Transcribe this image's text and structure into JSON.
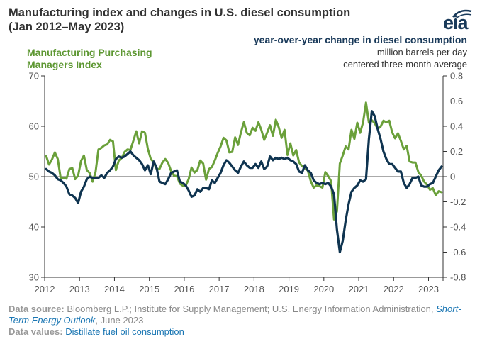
{
  "header": {
    "title_line1": "Manufacturing index and changes in U.S. diesel consumption",
    "title_line2": "(Jan 2012–May 2023)",
    "logo_text": "eia"
  },
  "left_axis_title": {
    "line1": "Manufacturing Purchasing",
    "line2": "Managers Index"
  },
  "right_axis_title": {
    "line1": "year-over-year change in diesel consumption",
    "line2": "million barrels per day",
    "line3": "centered three-month average"
  },
  "footer": {
    "source_label": "Data source:",
    "source_text": "Bloomberg L.P.; Institute for Supply Management; U.S. Energy Information Administration,",
    "source_link": "Short-Term Energy Outlook",
    "source_date": ", June 2023",
    "values_label": "Data values:",
    "values_link": "Distillate fuel oil consumption"
  },
  "colors": {
    "pmi": "#6aa03a",
    "diesel": "#0f3450",
    "axis": "#333333",
    "zero_line": "#555555"
  },
  "chart_data": {
    "type": "line",
    "x_start": "2012-01",
    "x_end": "2023-05",
    "x_tick_labels": [
      "2012",
      "2013",
      "2014",
      "2015",
      "2016",
      "2017",
      "2018",
      "2019",
      "2020",
      "2021",
      "2022",
      "2023"
    ],
    "left_axis": {
      "ylim": [
        30,
        70
      ],
      "ticks": [
        30,
        40,
        50,
        60,
        70
      ]
    },
    "right_axis": {
      "ylim": [
        -0.8,
        0.8
      ],
      "ticks": [
        "-0.8",
        "-0.6",
        "-0.4",
        "-0.2",
        "0",
        "0.2",
        "0.4",
        "0.6",
        "0.8"
      ]
    },
    "grid": false,
    "series": [
      {
        "name": "Manufacturing Purchasing Managers Index",
        "axis": "left",
        "values": [
          54.1,
          52.4,
          53.4,
          54.8,
          53.5,
          49.7,
          49.8,
          49.6,
          51.5,
          51.7,
          49.5,
          50.2,
          53.1,
          54.2,
          51.3,
          50.7,
          49.0,
          50.9,
          55.4,
          55.7,
          56.2,
          56.4,
          57.3,
          57.0,
          51.3,
          53.2,
          53.7,
          54.9,
          55.4,
          55.3,
          57.1,
          59.0,
          56.6,
          59.0,
          58.7,
          55.5,
          53.5,
          52.9,
          51.5,
          51.5,
          52.8,
          53.5,
          52.7,
          51.1,
          50.2,
          50.1,
          48.6,
          48.2,
          48.2,
          49.5,
          51.8,
          50.8,
          51.3,
          53.2,
          52.6,
          49.4,
          51.5,
          51.9,
          53.2,
          54.7,
          56.0,
          57.7,
          57.2,
          54.8,
          54.9,
          57.8,
          56.3,
          58.8,
          60.8,
          58.7,
          58.2,
          59.7,
          59.1,
          60.8,
          59.3,
          57.3,
          58.7,
          60.2,
          58.1,
          61.3,
          59.8,
          57.7,
          59.3,
          54.3,
          56.6,
          54.2,
          55.3,
          52.8,
          52.1,
          51.7,
          51.2,
          49.1,
          47.8,
          48.3,
          48.1,
          47.8,
          50.9,
          50.1,
          49.1,
          41.5,
          43.1,
          52.6,
          54.2,
          56.0,
          55.4,
          59.3,
          57.5,
          60.7,
          58.7,
          60.8,
          64.7,
          60.7,
          61.2,
          60.6,
          59.5,
          59.9,
          61.1,
          60.8,
          61.1,
          58.8,
          57.6,
          58.6,
          57.1,
          55.4,
          56.1,
          53.0,
          52.8,
          52.8,
          50.9,
          50.2,
          49.0,
          48.4,
          47.4,
          47.7,
          46.3,
          47.1,
          46.9
        ]
      },
      {
        "name": "year-over-year change in diesel consumption",
        "axis": "right",
        "values": [
          0.06,
          0.04,
          0.03,
          0.01,
          -0.02,
          -0.03,
          -0.05,
          -0.08,
          -0.14,
          -0.15,
          -0.17,
          -0.21,
          -0.12,
          -0.08,
          -0.02,
          0.0,
          -0.01,
          -0.01,
          -0.01,
          0.01,
          -0.01,
          0.03,
          0.05,
          0.08,
          0.14,
          0.16,
          0.15,
          0.16,
          0.18,
          0.2,
          0.17,
          0.15,
          0.13,
          0.1,
          0.05,
          0.09,
          0.02,
          0.12,
          0.07,
          -0.04,
          -0.05,
          -0.06,
          -0.02,
          0.03,
          0.04,
          0.05,
          -0.04,
          -0.05,
          -0.07,
          -0.11,
          -0.16,
          -0.15,
          -0.1,
          -0.12,
          -0.09,
          -0.09,
          -0.1,
          -0.03,
          -0.05,
          -0.01,
          0.03,
          0.09,
          0.13,
          0.11,
          0.08,
          0.05,
          0.03,
          0.08,
          0.12,
          0.09,
          0.07,
          0.07,
          0.1,
          0.07,
          0.12,
          0.06,
          0.08,
          0.16,
          0.13,
          0.15,
          0.14,
          0.15,
          0.14,
          0.15,
          0.13,
          0.12,
          0.1,
          0.04,
          0.03,
          0.09,
          0.05,
          0.03,
          -0.03,
          -0.05,
          -0.06,
          -0.05,
          -0.06,
          -0.05,
          -0.08,
          -0.14,
          -0.42,
          -0.6,
          -0.51,
          -0.35,
          -0.22,
          -0.12,
          -0.09,
          -0.07,
          -0.03,
          -0.04,
          -0.02,
          0.3,
          0.52,
          0.48,
          0.38,
          0.3,
          0.2,
          0.14,
          0.1,
          0.1,
          0.07,
          0.04,
          0.04,
          -0.05,
          -0.09,
          -0.06,
          -0.01,
          -0.01,
          0.0,
          -0.07,
          -0.08,
          -0.08,
          -0.06,
          -0.05,
          0.0,
          0.05,
          0.08
        ]
      }
    ]
  }
}
